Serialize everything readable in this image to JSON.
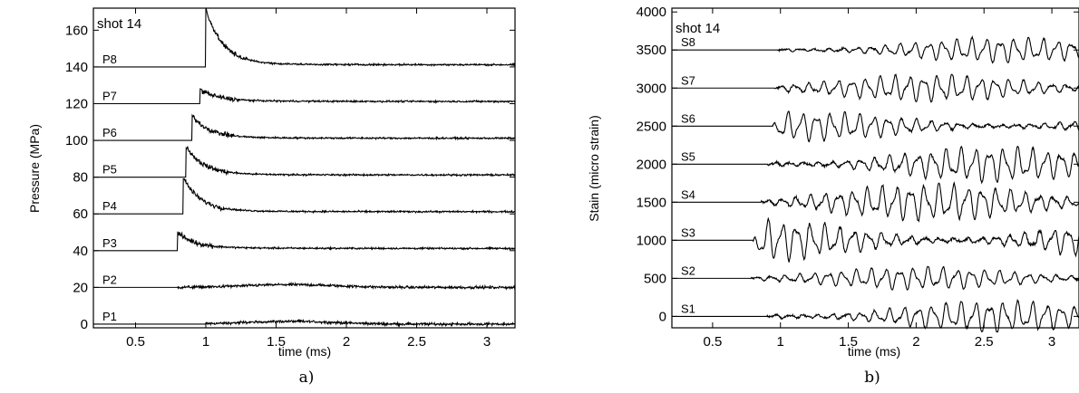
{
  "chart_data": [
    {
      "type": "line",
      "panel_caption": "a)",
      "annotation": "shot 14",
      "xlabel": "time (ms)",
      "ylabel": "Pressure (MPa)",
      "xlim": [
        0.2,
        3.2
      ],
      "ylim": [
        -2,
        172
      ],
      "xticks": [
        0.5,
        1,
        1.5,
        2,
        2.5,
        3
      ],
      "xtick_labels": [
        "0.5",
        "1",
        "1.5",
        "2",
        "2.5",
        "3"
      ],
      "yticks": [
        0,
        20,
        40,
        60,
        80,
        100,
        120,
        140,
        160
      ],
      "ytick_labels": [
        "0",
        "20",
        "40",
        "60",
        "80",
        "100",
        "120",
        "140",
        "160"
      ],
      "grid": false,
      "series": [
        {
          "label": "P1",
          "baseline": 0,
          "onset": 1.0,
          "peak": 1.5,
          "type": "slow"
        },
        {
          "label": "P2",
          "baseline": 20,
          "onset": 0.8,
          "peak": 1.5,
          "type": "slow"
        },
        {
          "label": "P3",
          "baseline": 40,
          "onset": 0.8,
          "peak": 8,
          "type": "pressure"
        },
        {
          "label": "P4",
          "baseline": 60,
          "onset": 0.84,
          "peak": 18,
          "type": "pressure"
        },
        {
          "label": "P5",
          "baseline": 80,
          "onset": 0.86,
          "peak": 15,
          "type": "pressure"
        },
        {
          "label": "P6",
          "baseline": 100,
          "onset": 0.9,
          "peak": 12,
          "type": "pressure"
        },
        {
          "label": "P7",
          "baseline": 120,
          "onset": 0.96,
          "peak": 6,
          "type": "pressure"
        },
        {
          "label": "P8",
          "baseline": 140,
          "onset": 1.0,
          "peak": 30,
          "type": "pressure"
        }
      ]
    },
    {
      "type": "line",
      "panel_caption": "b)",
      "annotation": "shot 14",
      "xlabel": "time (ms)",
      "ylabel": "Stain (micro strain)",
      "xlim": [
        0.2,
        3.2
      ],
      "ylim": [
        -150,
        4050
      ],
      "xticks": [
        0.5,
        1,
        1.5,
        2,
        2.5,
        3
      ],
      "xtick_labels": [
        "0.5",
        "1",
        "1.5",
        "2",
        "2.5",
        "3"
      ],
      "yticks": [
        0,
        500,
        1000,
        1500,
        2000,
        2500,
        3000,
        3500,
        4000
      ],
      "ytick_labels": [
        "0",
        "500",
        "1000",
        "1500",
        "2000",
        "2500",
        "3000",
        "3500",
        "4000"
      ],
      "grid": false,
      "series": [
        {
          "label": "S1",
          "baseline": 0,
          "onset": 0.9,
          "amplitude": 150,
          "type": "strain"
        },
        {
          "label": "S2",
          "baseline": 500,
          "onset": 0.78,
          "amplitude": 110,
          "type": "strain"
        },
        {
          "label": "S3",
          "baseline": 1000,
          "onset": 0.8,
          "amplitude": 200,
          "type": "strain"
        },
        {
          "label": "S4",
          "baseline": 1500,
          "onset": 0.86,
          "amplitude": 180,
          "type": "strain"
        },
        {
          "label": "S5",
          "baseline": 2000,
          "onset": 0.9,
          "amplitude": 170,
          "type": "strain"
        },
        {
          "label": "S6",
          "baseline": 2500,
          "onset": 0.94,
          "amplitude": 140,
          "type": "strain"
        },
        {
          "label": "S7",
          "baseline": 3000,
          "onset": 0.96,
          "amplitude": 130,
          "type": "strain"
        },
        {
          "label": "S8",
          "baseline": 3500,
          "onset": 0.98,
          "amplitude": 120,
          "type": "strain"
        }
      ]
    }
  ]
}
